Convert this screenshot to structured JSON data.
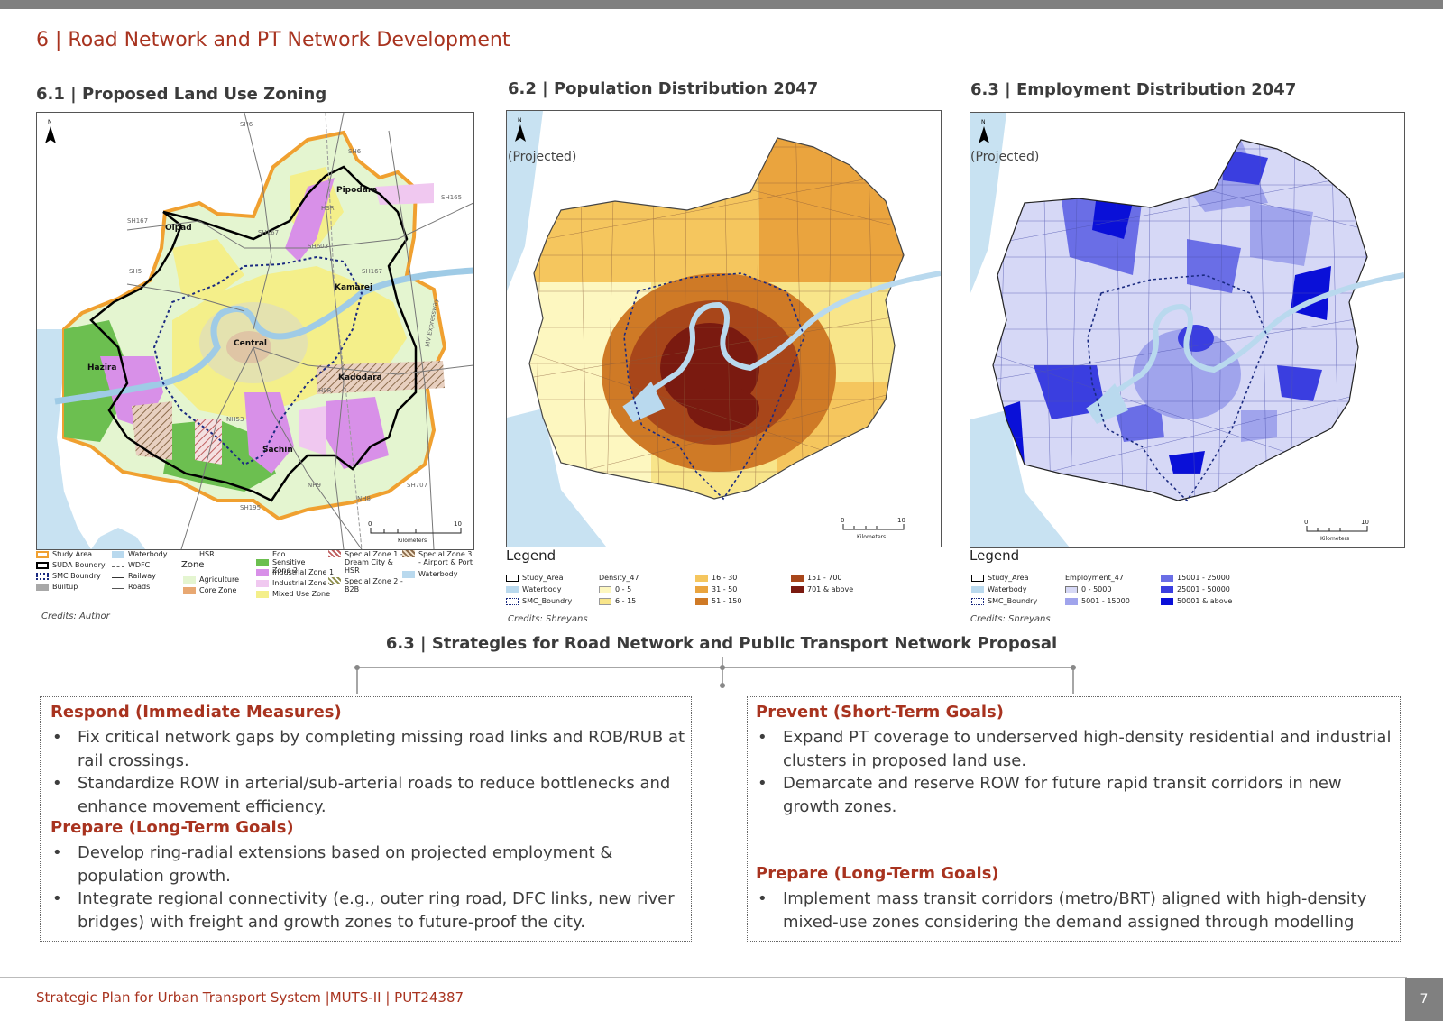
{
  "page_title": "6 | Road Network and PT Network Development",
  "maps": {
    "land_use": {
      "title": "6.1 | Proposed Land Use Zoning",
      "north": "N",
      "places": [
        "Pipodara",
        "Olpad",
        "Kamarej",
        "Central",
        "Hazira",
        "Kadodara",
        "Sachin"
      ],
      "roads": [
        "SH6",
        "SH167",
        "SH167",
        "SH5",
        "SH6",
        "SH603",
        "HSR",
        "SH165",
        "SH167",
        "MV Expressway",
        "HSR",
        "NH53",
        "SH707",
        "NH8",
        "SH195",
        "NH9"
      ],
      "scale": {
        "zero": "0",
        "ten": "10",
        "unit": "Kilometers"
      },
      "legend": {
        "zone_header": "Zone",
        "items": [
          {
            "label": "Study Area",
            "color": "#f0a030",
            "kind": "outline"
          },
          {
            "label": "SUDA Boundry",
            "color": "#000000",
            "kind": "outline"
          },
          {
            "label": "SMC Boundry",
            "color": "#1a2a80",
            "kind": "dashed"
          },
          {
            "label": "Builtup",
            "color": "#a8a8a8",
            "kind": "fill"
          },
          {
            "label": "Waterbody",
            "color": "#b9d9ee",
            "kind": "fill"
          },
          {
            "label": "WDFC",
            "color": "#666666",
            "kind": "line"
          },
          {
            "label": "Railway",
            "color": "#333333",
            "kind": "line"
          },
          {
            "label": "Roads",
            "color": "#555555",
            "kind": "line"
          },
          {
            "label": "HSR",
            "color": "#888888",
            "kind": "line"
          },
          {
            "label": "Agriculture",
            "color": "#e4f5d0",
            "kind": "fill"
          },
          {
            "label": "Core Zone",
            "color": "#e8a872",
            "kind": "fill"
          },
          {
            "label": "Eco Sensitive Zone 2",
            "color": "#6cbf50",
            "kind": "fill"
          },
          {
            "label": "Industrial Zone 1",
            "color": "#d890e8",
            "kind": "fill"
          },
          {
            "label": "Industrial Zone 2",
            "color": "#f0c8f0",
            "kind": "fill"
          },
          {
            "label": "Mixed Use Zone",
            "color": "#f4ef8a",
            "kind": "fill"
          },
          {
            "label": "Special Zone 1 - Dream City & HSR",
            "color": "#c06060",
            "kind": "hatch"
          },
          {
            "label": "Special Zone 2 - B2B",
            "color": "#909050",
            "kind": "hatch"
          },
          {
            "label": "Special Zone 3 - Airport & Port",
            "color": "#8a6a4a",
            "kind": "hatch"
          },
          {
            "label": "Waterbody",
            "color": "#b9d9ee",
            "kind": "fill"
          }
        ]
      },
      "credits": "Credits: Author"
    },
    "population": {
      "title": "6.2 | Population Distribution 2047",
      "north": "N",
      "projected": "(Projected)",
      "scale": {
        "zero": "0",
        "ten": "10",
        "unit": "Kilometers"
      },
      "legend_title": "Legend",
      "legend": {
        "study_area": "Study_Area",
        "waterbody": "Waterbody",
        "smc": "SMC_Boundry",
        "field": "Density_47",
        "classes": [
          {
            "label": "0 - 5",
            "color": "#fdf7c0"
          },
          {
            "label": "6 - 15",
            "color": "#f8e58a"
          },
          {
            "label": "16 - 30",
            "color": "#f5c65e"
          },
          {
            "label": "31 - 50",
            "color": "#eaa43e"
          },
          {
            "label": "51 - 150",
            "color": "#cf7a26"
          },
          {
            "label": "151 - 700",
            "color": "#a8461a"
          },
          {
            "label": "701 & above",
            "color": "#7a1a10"
          }
        ]
      },
      "credits": "Credits: Shreyans"
    },
    "employment": {
      "title": "6.3 | Employment Distribution 2047",
      "north": "N",
      "projected": "(Projected)",
      "scale": {
        "zero": "0",
        "ten": "10",
        "unit": "Kilometers"
      },
      "legend_title": "Legend",
      "legend": {
        "study_area": "Study_Area",
        "waterbody": "Waterbody",
        "smc": "SMC_Boundry",
        "field": "Employment_47",
        "classes": [
          {
            "label": "0 - 5000",
            "color": "#d6d8f6"
          },
          {
            "label": "5001 - 15000",
            "color": "#a0a4ec"
          },
          {
            "label": "15001 - 25000",
            "color": "#6a6ee6"
          },
          {
            "label": "25001 - 50000",
            "color": "#3a3ee0"
          },
          {
            "label": "50001 & above",
            "color": "#0a10d8"
          }
        ]
      },
      "credits": "Credits: Shreyans"
    }
  },
  "strategies": {
    "title": "6.3 | Strategies for Road Network and Public Transport  Network Proposal",
    "left": {
      "respond_heading": "Respond (Immediate Measures)",
      "respond_items": [
        "Fix critical network gaps by completing missing road links and ROB/RUB at rail crossings.",
        "Standardize ROW in arterial/sub-arterial roads to reduce bottlenecks and enhance movement efficiency."
      ],
      "prepare_heading": "Prepare (Long-Term Goals)",
      "prepare_items": [
        "Develop ring-radial extensions based on projected employment & population growth.",
        "Integrate regional connectivity (e.g., outer ring road, DFC links, new river bridges) with freight and growth zones to future-proof the city."
      ]
    },
    "right": {
      "prevent_heading": "Prevent (Short-Term Goals)",
      "prevent_items": [
        "Expand PT coverage to underserved high-density residential and industrial clusters in proposed land use.",
        "Demarcate and reserve ROW for future rapid transit corridors in new growth zones."
      ],
      "prepare_heading": "Prepare (Long-Term Goals)",
      "prepare_items": [
        "Implement mass transit corridors (metro/BRT) aligned with high-density mixed-use zones considering the demand assigned through modelling"
      ]
    }
  },
  "footer": {
    "text": "Strategic Plan for Urban Transport System |MUTS-II | PUT24387",
    "page_number": "7"
  }
}
